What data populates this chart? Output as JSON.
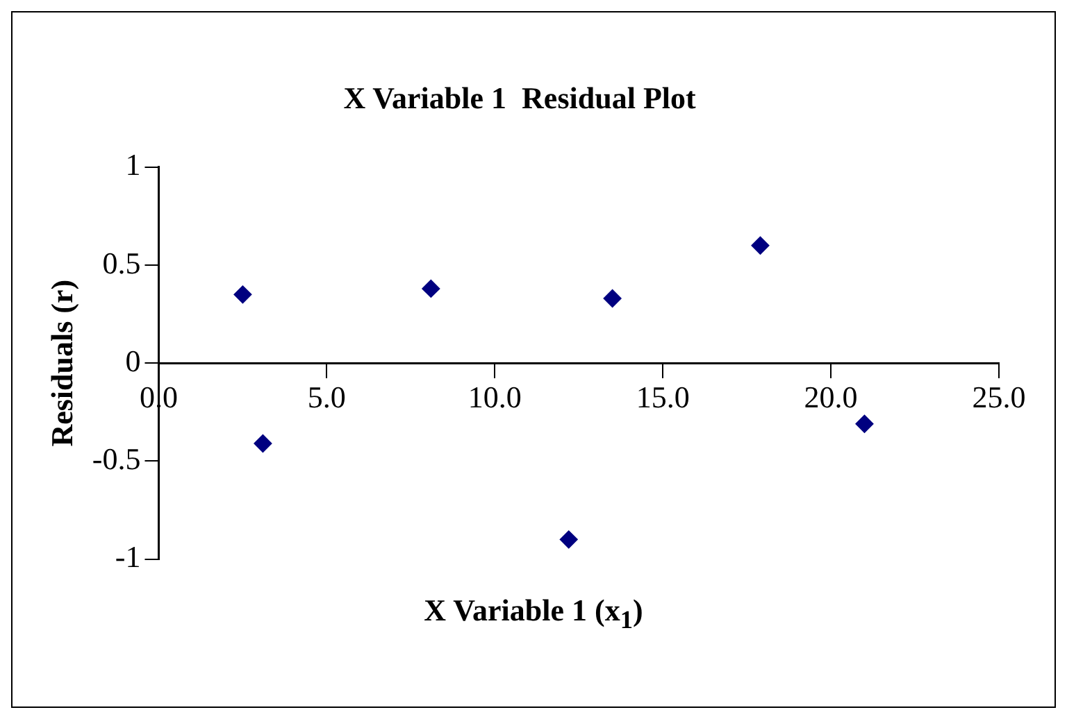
{
  "chart_data": {
    "type": "scatter",
    "title": "X Variable 1  Residual Plot",
    "xlabel": "X Variable 1 (x$_{1}$)",
    "ylabel": "Residuals (r)",
    "x": [
      2.5,
      3.1,
      8.1,
      12.2,
      13.5,
      17.9,
      21.0
    ],
    "series": [
      {
        "color": "#000080",
        "values": [
          0.35,
          -0.41,
          0.38,
          -0.9,
          0.33,
          0.6,
          -0.31
        ]
      }
    ],
    "xlim": [
      0,
      25
    ],
    "xticks": [
      {
        "value": 0,
        "label": "0.0"
      },
      {
        "value": 5,
        "label": "5.0"
      },
      {
        "value": 10,
        "label": "10.0"
      },
      {
        "value": 15,
        "label": "15.0"
      },
      {
        "value": 20,
        "label": "20.0"
      },
      {
        "value": 25,
        "label": "25.0"
      }
    ],
    "ylim": [
      -1,
      1
    ],
    "yticks": [
      -1,
      -0.5,
      0,
      0.5,
      1
    ],
    "marker": "diamond",
    "grid": false,
    "legend": false
  }
}
